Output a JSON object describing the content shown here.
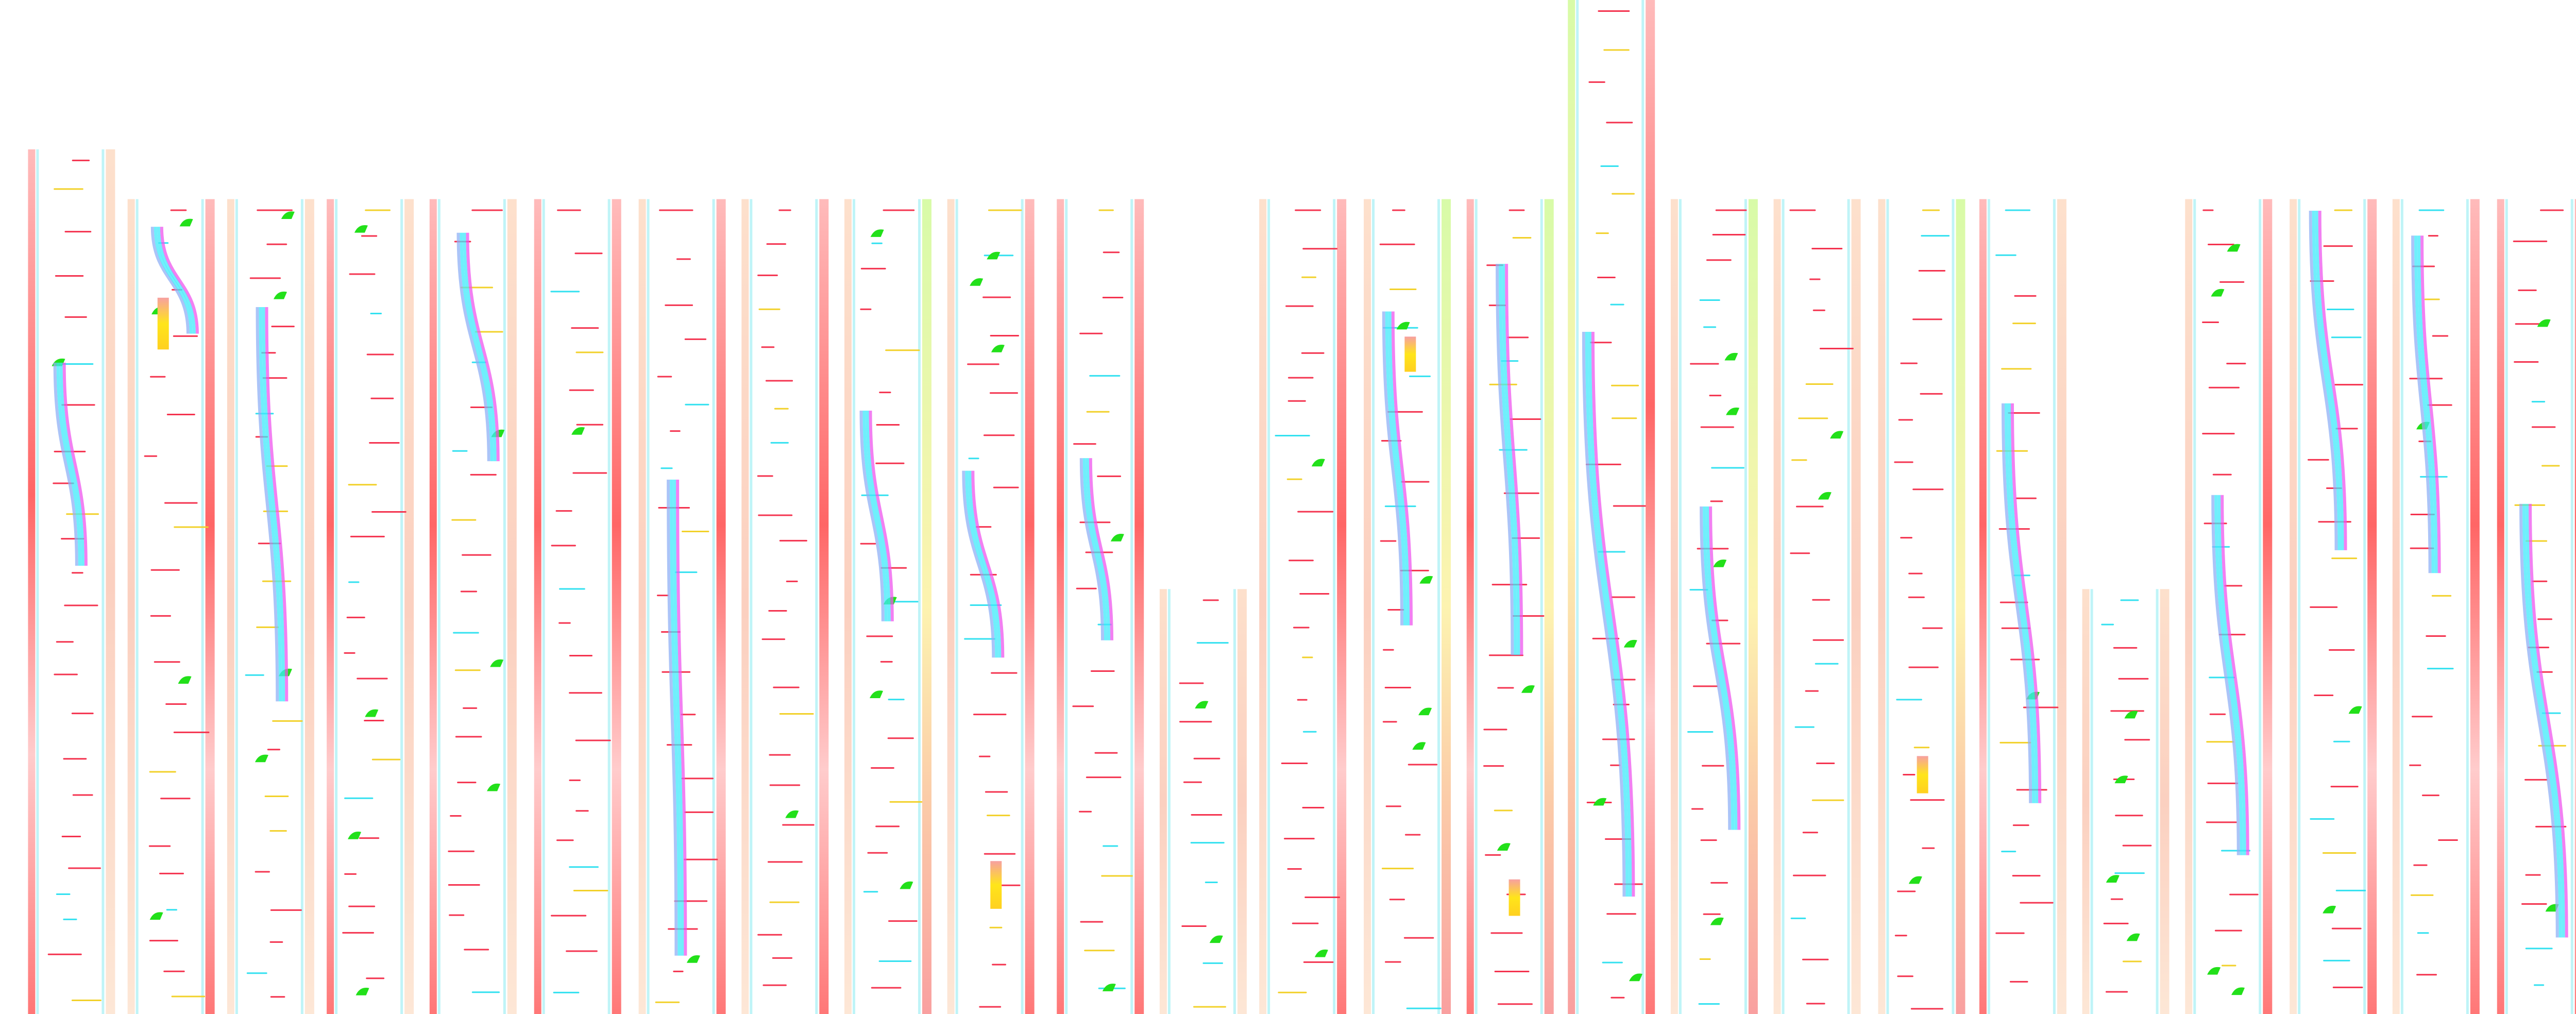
{
  "colors": {
    "background": "#ffffff",
    "track_edge": "#bff4f7",
    "side_band_warm": "#fde0cc",
    "side_band_red": "#f77a7a",
    "side_band_green": "#c8f79a",
    "dash_red": "#f4334f",
    "dash_cyan": "#33e1f0",
    "dash_yellow": "#f2d12a",
    "marker_green": "#22e01a",
    "ribbon_cyan": "#3fe9fb",
    "ribbon_blue": "#8fb0f5",
    "ribbon_magenta": "#ee55ee",
    "block_yellow": "#ffe51a",
    "block_orange": "#f7904a"
  }
}
